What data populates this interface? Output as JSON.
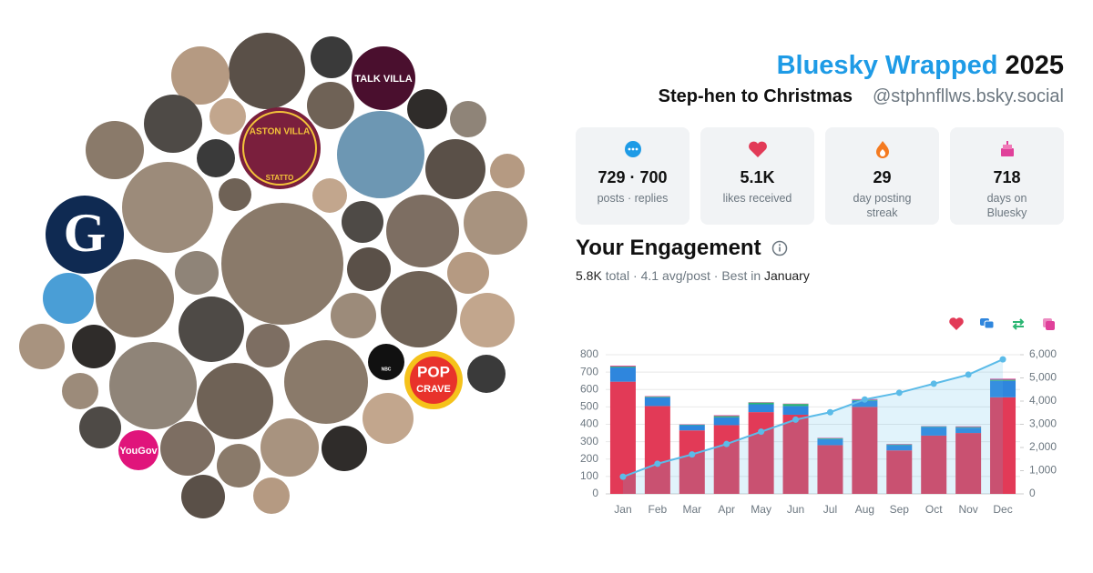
{
  "header": {
    "title_brand": "Bluesky Wrapped",
    "title_year": "2025",
    "display_name": "Step-hen to Christmas",
    "handle": "@stphnfllws.bsky.social"
  },
  "stats": [
    {
      "value": "729 · 700",
      "label": "posts · replies"
    },
    {
      "value": "5.1K",
      "label": "likes received"
    },
    {
      "value": "29",
      "label": "day posting streak"
    },
    {
      "value": "718",
      "label": "days on Bluesky"
    }
  ],
  "engagement": {
    "title": "Your Engagement",
    "summary": [
      "5.8K",
      "total · 4.1 avg/post · Best in",
      "January"
    ]
  },
  "avatar_labels": [
    "TALK VILLA",
    "ASTON VILLA",
    "STATTO",
    "G",
    "POP",
    "CRAVE",
    "YouGov",
    "NBC"
  ],
  "chart_data": {
    "type": "bar",
    "stacked": true,
    "categories": [
      "Jan",
      "Feb",
      "Mar",
      "Apr",
      "May",
      "Jun",
      "Jul",
      "Aug",
      "Sep",
      "Oct",
      "Nov",
      "Dec"
    ],
    "series": [
      {
        "color": "#e23a57",
        "values": [
          645,
          505,
          365,
          395,
          470,
          455,
          280,
          500,
          250,
          335,
          350,
          555
        ]
      },
      {
        "color": "#2f86dd",
        "values": [
          82,
          50,
          30,
          45,
          45,
          50,
          35,
          35,
          30,
          50,
          30,
          95
        ]
      },
      {
        "color": "#2bb673",
        "values": [
          5,
          4,
          3,
          7,
          10,
          12,
          4,
          5,
          4,
          3,
          4,
          6
        ]
      },
      {
        "color": "#e0409a",
        "values": [
          5,
          3,
          2,
          5,
          2,
          2,
          3,
          5,
          3,
          2,
          4,
          6
        ]
      },
      {
        "type": "line",
        "axis": "y2",
        "color": "#5bbbe8",
        "values": [
          740,
          1300,
          1700,
          2150,
          2680,
          3200,
          3520,
          4070,
          4360,
          4750,
          5140,
          5800
        ]
      }
    ],
    "ylim": [
      0,
      800
    ],
    "yticks": [
      0,
      100,
      200,
      300,
      400,
      500,
      600,
      700,
      800
    ],
    "y2lim": [
      0,
      6000
    ],
    "y2ticks": [
      0,
      {
        "value": 1000,
        "label": "1,000"
      },
      {
        "value": 2000,
        "label": "2,000"
      },
      {
        "value": 3000,
        "label": "3,000"
      },
      {
        "value": 4000,
        "label": "4,000"
      },
      {
        "value": 5000,
        "label": "5,000"
      },
      {
        "value": 6000,
        "label": "6,000"
      }
    ],
    "grid": true
  }
}
